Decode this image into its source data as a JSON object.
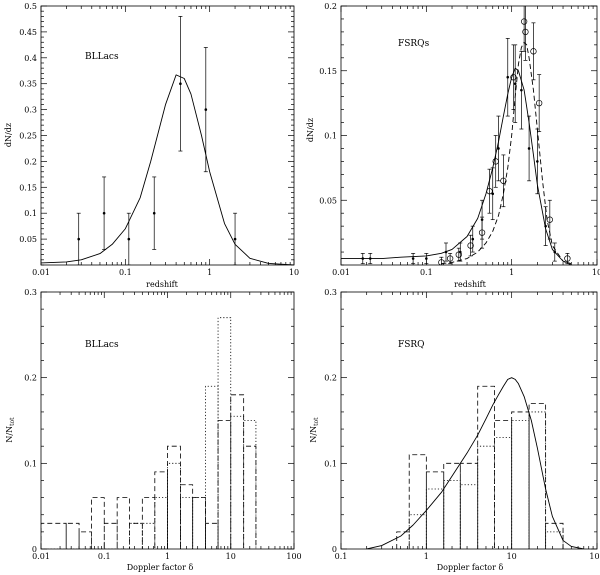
{
  "chart_data": [
    {
      "id": "bllac-z",
      "type": "scatter",
      "title": "",
      "label": "BLLacs",
      "xlabel": "redshift",
      "ylabel": "dN/dz",
      "xscale": "log",
      "xlim": [
        0.01,
        10
      ],
      "ylim": [
        0,
        0.5
      ],
      "xticks": [
        0.01,
        0.1,
        1,
        10
      ],
      "xticklabels": [
        "0.01",
        "0.1",
        "1",
        "10"
      ],
      "yticks": [
        0.05,
        0.1,
        0.15,
        0.2,
        0.25,
        0.3,
        0.35,
        0.4,
        0.45,
        0.5
      ],
      "yticklabels": [
        "0.05",
        "0.1",
        "0.15",
        "0.2",
        "0.25",
        "0.3",
        "0.35",
        "0.4",
        "0.45",
        "0.5"
      ],
      "series": [
        {
          "name": "data",
          "style": "errorbar",
          "points": [
            {
              "x": 0.028,
              "y": 0.05,
              "lo": 0.0,
              "hi": 0.1
            },
            {
              "x": 0.056,
              "y": 0.1,
              "lo": 0.03,
              "hi": 0.17
            },
            {
              "x": 0.11,
              "y": 0.05,
              "lo": 0.0,
              "hi": 0.1
            },
            {
              "x": 0.22,
              "y": 0.1,
              "lo": 0.03,
              "hi": 0.17
            },
            {
              "x": 0.45,
              "y": 0.35,
              "lo": 0.22,
              "hi": 0.48
            },
            {
              "x": 0.9,
              "y": 0.3,
              "lo": 0.18,
              "hi": 0.42
            },
            {
              "x": 2.0,
              "y": 0.05,
              "lo": 0.0,
              "hi": 0.1
            }
          ]
        },
        {
          "name": "model",
          "style": "solid",
          "x": [
            0.01,
            0.02,
            0.03,
            0.05,
            0.07,
            0.1,
            0.15,
            0.2,
            0.3,
            0.4,
            0.5,
            0.6,
            0.8,
            1.0,
            1.5,
            2.0,
            3.0,
            5.0,
            10.0
          ],
          "y": [
            0.004,
            0.006,
            0.01,
            0.022,
            0.04,
            0.07,
            0.13,
            0.2,
            0.31,
            0.367,
            0.36,
            0.33,
            0.25,
            0.18,
            0.08,
            0.04,
            0.013,
            0.003,
            0.0
          ]
        }
      ]
    },
    {
      "id": "fsrq-z",
      "type": "scatter",
      "title": "",
      "label": "FSRQs",
      "xlabel": "redshift",
      "ylabel": "dN/dz",
      "xscale": "log",
      "xlim": [
        0.01,
        10
      ],
      "ylim": [
        0,
        0.2
      ],
      "xticks": [
        0.01,
        0.1,
        1,
        10
      ],
      "xticklabels": [
        "0.01",
        "0.1",
        "1",
        "10"
      ],
      "yticks": [
        0.05,
        0.1,
        0.15,
        0.2
      ],
      "yticklabels": [
        "0.05",
        "0.1",
        "0.15",
        "0.2"
      ],
      "series": [
        {
          "name": "data-dots",
          "style": "errorbar-dot",
          "points": [
            {
              "x": 0.018,
              "y": 0.005,
              "lo": 0.001,
              "hi": 0.009
            },
            {
              "x": 0.022,
              "y": 0.005,
              "lo": 0.001,
              "hi": 0.009
            },
            {
              "x": 0.07,
              "y": 0.005,
              "lo": 0.001,
              "hi": 0.009
            },
            {
              "x": 0.1,
              "y": 0.005,
              "lo": 0.001,
              "hi": 0.009
            },
            {
              "x": 0.17,
              "y": 0.01,
              "lo": 0.003,
              "hi": 0.017
            },
            {
              "x": 0.25,
              "y": 0.01,
              "lo": 0.003,
              "hi": 0.017
            },
            {
              "x": 0.35,
              "y": 0.02,
              "lo": 0.01,
              "hi": 0.03
            },
            {
              "x": 0.45,
              "y": 0.035,
              "lo": 0.02,
              "hi": 0.05
            },
            {
              "x": 0.6,
              "y": 0.055,
              "lo": 0.035,
              "hi": 0.075
            },
            {
              "x": 0.7,
              "y": 0.09,
              "lo": 0.065,
              "hi": 0.115
            },
            {
              "x": 0.9,
              "y": 0.145,
              "lo": 0.115,
              "hi": 0.175
            },
            {
              "x": 1.1,
              "y": 0.14,
              "lo": 0.11,
              "hi": 0.17
            },
            {
              "x": 1.3,
              "y": 0.135,
              "lo": 0.105,
              "hi": 0.165
            },
            {
              "x": 1.6,
              "y": 0.09,
              "lo": 0.065,
              "hi": 0.115
            },
            {
              "x": 2.0,
              "y": 0.08,
              "lo": 0.055,
              "hi": 0.105
            },
            {
              "x": 2.5,
              "y": 0.03,
              "lo": 0.015,
              "hi": 0.045
            },
            {
              "x": 3.2,
              "y": 0.01,
              "lo": 0.003,
              "hi": 0.017
            }
          ]
        },
        {
          "name": "data-circles",
          "style": "errorbar-circle",
          "points": [
            {
              "x": 0.15,
              "y": 0.002,
              "lo": 0.0,
              "hi": 0.006
            },
            {
              "x": 0.19,
              "y": 0.005,
              "lo": 0.001,
              "hi": 0.009
            },
            {
              "x": 0.24,
              "y": 0.008,
              "lo": 0.003,
              "hi": 0.013
            },
            {
              "x": 0.33,
              "y": 0.015,
              "lo": 0.007,
              "hi": 0.023
            },
            {
              "x": 0.45,
              "y": 0.025,
              "lo": 0.013,
              "hi": 0.037
            },
            {
              "x": 0.55,
              "y": 0.057,
              "lo": 0.04,
              "hi": 0.074
            },
            {
              "x": 0.65,
              "y": 0.08,
              "lo": 0.06,
              "hi": 0.1
            },
            {
              "x": 0.8,
              "y": 0.065,
              "lo": 0.045,
              "hi": 0.085
            },
            {
              "x": 1.05,
              "y": 0.145,
              "lo": 0.12,
              "hi": 0.17
            },
            {
              "x": 1.4,
              "y": 0.188,
              "lo": 0.165,
              "hi": 0.21
            },
            {
              "x": 1.45,
              "y": 0.18,
              "lo": 0.158,
              "hi": 0.202
            },
            {
              "x": 1.8,
              "y": 0.165,
              "lo": 0.143,
              "hi": 0.187
            },
            {
              "x": 2.1,
              "y": 0.125,
              "lo": 0.103,
              "hi": 0.147
            },
            {
              "x": 2.8,
              "y": 0.035,
              "lo": 0.02,
              "hi": 0.05
            },
            {
              "x": 4.5,
              "y": 0.005,
              "lo": 0.001,
              "hi": 0.009
            }
          ]
        },
        {
          "name": "model-solid",
          "style": "solid",
          "x": [
            0.01,
            0.03,
            0.05,
            0.1,
            0.15,
            0.2,
            0.3,
            0.4,
            0.5,
            0.6,
            0.7,
            0.8,
            0.9,
            1.0,
            1.1,
            1.2,
            1.4,
            1.6,
            1.8,
            2.0,
            2.5,
            3.0,
            4.0,
            5.0
          ],
          "y": [
            0.005,
            0.005,
            0.006,
            0.007,
            0.009,
            0.012,
            0.022,
            0.036,
            0.055,
            0.075,
            0.095,
            0.115,
            0.132,
            0.145,
            0.152,
            0.15,
            0.135,
            0.11,
            0.085,
            0.062,
            0.028,
            0.012,
            0.003,
            0.001
          ]
        },
        {
          "name": "model-dashed",
          "style": "dashed",
          "x": [
            0.15,
            0.2,
            0.3,
            0.4,
            0.5,
            0.6,
            0.7,
            0.8,
            0.9,
            1.0,
            1.1,
            1.2,
            1.3,
            1.4,
            1.5,
            1.6,
            1.8,
            2.0,
            2.3,
            2.6,
            3.0,
            4.0,
            5.0
          ],
          "y": [
            0.001,
            0.002,
            0.005,
            0.01,
            0.017,
            0.026,
            0.038,
            0.055,
            0.075,
            0.1,
            0.13,
            0.155,
            0.168,
            0.172,
            0.17,
            0.16,
            0.135,
            0.105,
            0.065,
            0.035,
            0.015,
            0.003,
            0.0
          ]
        }
      ]
    },
    {
      "id": "bllac-doppler",
      "type": "histogram",
      "title": "",
      "label": "BLLacs",
      "xlabel": "Doppler factor δ",
      "ylabel": "N/N",
      "ylabel_sub": "tot",
      "xscale": "log",
      "xlim": [
        0.01,
        100
      ],
      "ylim": [
        0,
        0.3
      ],
      "xticks": [
        0.01,
        0.1,
        1,
        10,
        100
      ],
      "xticklabels": [
        "0.01",
        "0.1",
        "1",
        "10",
        "100"
      ],
      "yticks": [
        0,
        0.1,
        0.2,
        0.3
      ],
      "yticklabels": [
        "0",
        "0.1",
        "0.2",
        "0.3"
      ],
      "series": [
        {
          "name": "hist-dashed",
          "style": "dashed",
          "edges": [
            0.01,
            0.025,
            0.04,
            0.063,
            0.1,
            0.16,
            0.25,
            0.4,
            0.63,
            1.0,
            1.6,
            2.5,
            4.0,
            6.3,
            10,
            16,
            25
          ],
          "values": [
            0.03,
            0.03,
            0.02,
            0.06,
            0.03,
            0.06,
            0.03,
            0.06,
            0.09,
            0.12,
            0.075,
            0.06,
            0.03,
            0.15,
            0.18,
            0.12
          ]
        },
        {
          "name": "hist-dotted",
          "style": "dotted",
          "edges": [
            0.01,
            0.025,
            0.04,
            0.063,
            0.1,
            0.16,
            0.25,
            0.4,
            0.63,
            1.0,
            1.6,
            2.5,
            4.0,
            6.3,
            10,
            16,
            25
          ],
          "values": [
            0,
            0,
            0,
            0,
            0,
            0,
            0.03,
            0.03,
            0.06,
            0.1,
            0.06,
            0.06,
            0.19,
            0.27,
            0.155,
            0.15
          ]
        }
      ]
    },
    {
      "id": "fsrq-doppler",
      "type": "histogram",
      "title": "",
      "label": "FSRQ",
      "xlabel": "Doppler factor δ",
      "ylabel": "N/N",
      "ylabel_sub": "tot",
      "xscale": "log",
      "xlim": [
        0.1,
        100
      ],
      "ylim": [
        0,
        0.3
      ],
      "xticks": [
        0.1,
        1,
        10,
        100
      ],
      "xticklabels": [
        "0.1",
        "1",
        "10",
        "100"
      ],
      "yticks": [
        0,
        0.1,
        0.2,
        0.3
      ],
      "yticklabels": [
        "0",
        "0.1",
        "0.2",
        "0.3"
      ],
      "series": [
        {
          "name": "hist-dashed",
          "style": "dashed",
          "edges": [
            0.45,
            0.63,
            1.0,
            1.6,
            2.5,
            4.0,
            6.3,
            10,
            16,
            25,
            40
          ],
          "values": [
            0.02,
            0.11,
            0.09,
            0.1,
            0.1,
            0.19,
            0.15,
            0.16,
            0.17,
            0.03
          ]
        },
        {
          "name": "hist-dotted",
          "style": "dotted",
          "edges": [
            0.45,
            0.63,
            1.0,
            1.6,
            2.5,
            4.0,
            6.3,
            10,
            16,
            25,
            40
          ],
          "values": [
            0.0,
            0.04,
            0.07,
            0.08,
            0.075,
            0.12,
            0.13,
            0.15,
            0.16,
            0.02
          ]
        },
        {
          "name": "model",
          "style": "solid",
          "x": [
            0.2,
            0.3,
            0.5,
            0.7,
            1.0,
            1.5,
            2.0,
            3.0,
            4.0,
            5.0,
            6.0,
            7.0,
            8.0,
            9.0,
            10,
            11,
            12,
            14,
            17,
            20,
            25,
            30,
            40,
            50,
            70
          ],
          "y": [
            0.0,
            0.004,
            0.015,
            0.028,
            0.045,
            0.066,
            0.085,
            0.112,
            0.133,
            0.152,
            0.168,
            0.18,
            0.19,
            0.198,
            0.2,
            0.198,
            0.193,
            0.178,
            0.15,
            0.118,
            0.07,
            0.038,
            0.01,
            0.003,
            0.0
          ]
        }
      ]
    }
  ]
}
